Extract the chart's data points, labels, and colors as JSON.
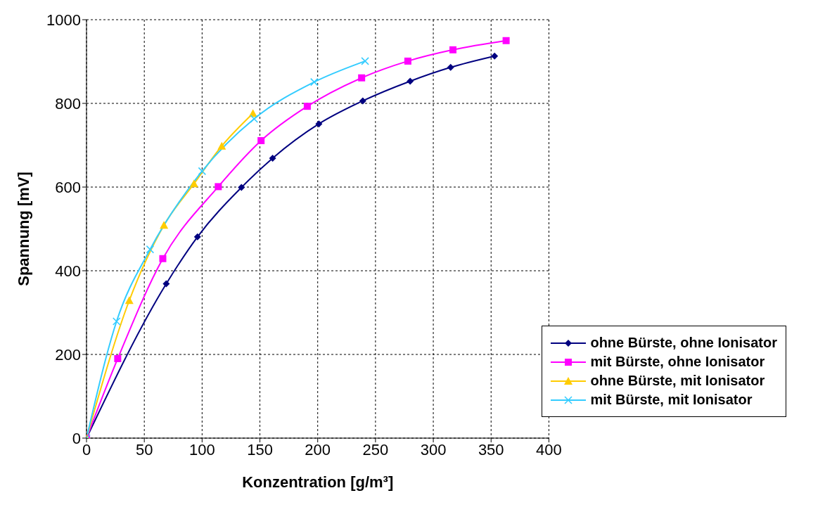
{
  "chart_data": {
    "type": "line",
    "xlabel": "Konzentration [g/m³]",
    "ylabel": "Spannung [mV]",
    "xlim": [
      0,
      400
    ],
    "xticks": [
      0,
      50,
      100,
      150,
      200,
      250,
      300,
      350,
      400
    ],
    "ylim": [
      0,
      1000
    ],
    "yticks": [
      0,
      200,
      400,
      600,
      800,
      1000
    ],
    "grid": true,
    "legend": "bottom right",
    "line_style": "solid",
    "series": [
      {
        "name": "ohne Bürste, ohne Ionisator",
        "color": "#000080",
        "marker": "diamond",
        "x": [
          0,
          69,
          96,
          134,
          161,
          201,
          239,
          280,
          315,
          353
        ],
        "values": [
          0,
          369,
          481,
          599,
          669,
          751,
          806,
          853,
          886,
          913
        ]
      },
      {
        "name": "mit Bürste, ohne Ionisator",
        "color": "#ff00ff",
        "marker": "square",
        "x": [
          0,
          27,
          66,
          114,
          151,
          191,
          238,
          278,
          317,
          363
        ],
        "values": [
          0,
          190,
          429,
          601,
          711,
          793,
          861,
          901,
          928,
          950
        ]
      },
      {
        "name": "ohne Bürste, mit Ionisator",
        "color": "#ffcc00",
        "marker": "triangle",
        "x": [
          0,
          37,
          67,
          93,
          117,
          144
        ],
        "values": [
          0,
          329,
          509,
          608,
          698,
          776
        ]
      },
      {
        "name": "mit Bürste, mit Ionisator",
        "color": "#33ccff",
        "marker": "cross",
        "x": [
          0,
          26,
          55,
          100,
          145,
          197,
          241
        ],
        "values": [
          0,
          279,
          451,
          638,
          763,
          851,
          901
        ]
      }
    ]
  }
}
